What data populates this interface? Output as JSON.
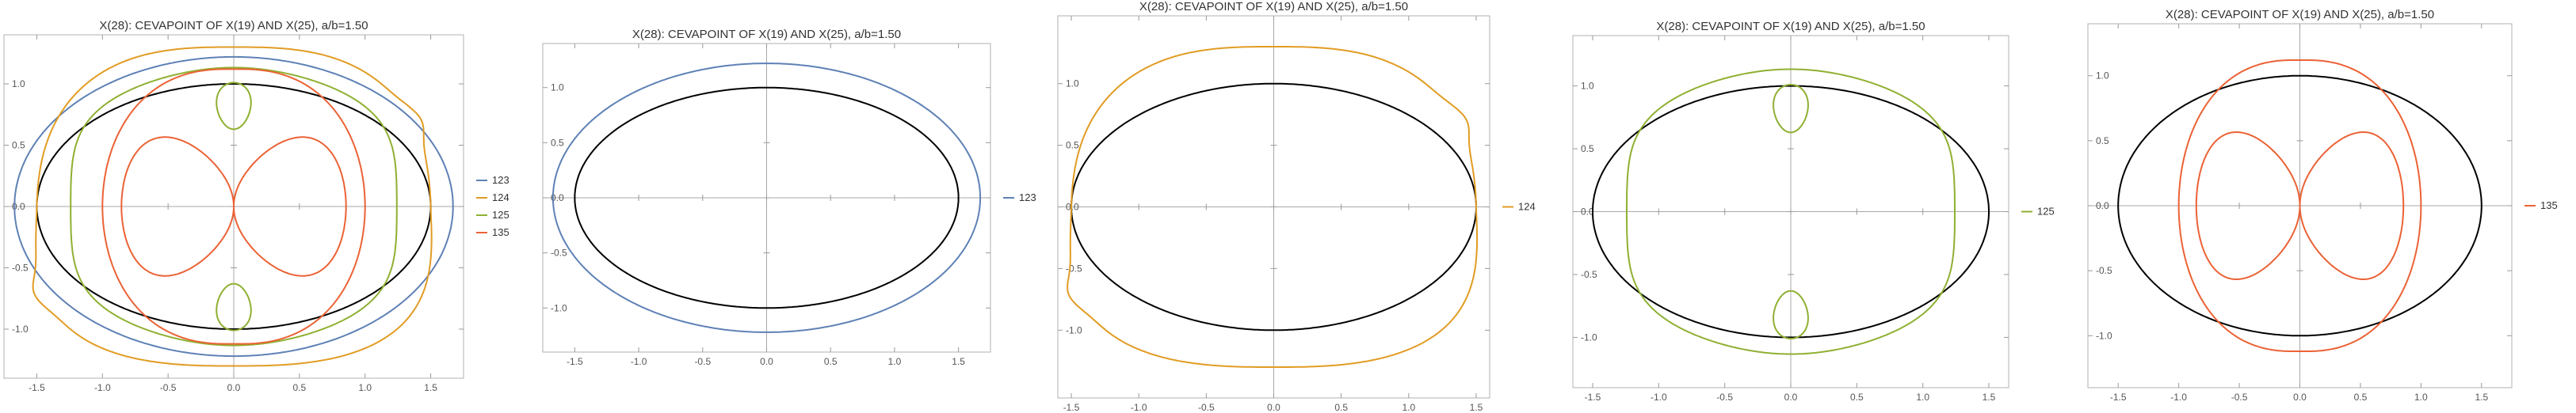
{
  "chart_data": [
    {
      "type": "line",
      "title": "X(28): CEVAPOINT OF X(19) AND X(25), a/b=1.50",
      "xlim": [
        -1.75,
        1.75
      ],
      "ylim": [
        -1.4,
        1.4
      ],
      "xticks": [
        "-1.5",
        "-1.0",
        "-0.5",
        "0.0",
        "0.5",
        "1.0",
        "1.5"
      ],
      "yticks": [
        "-1.0",
        "-0.5",
        "0.0",
        "0.5",
        "1.0"
      ],
      "legend_position": "right",
      "series": [
        {
          "name": "123",
          "color": "#5E81B5"
        },
        {
          "name": "124",
          "color": "#E19C24"
        },
        {
          "name": "125",
          "color": "#8FB032"
        },
        {
          "name": "135",
          "color": "#EB6235"
        }
      ]
    },
    {
      "type": "line",
      "title": "X(28): CEVAPOINT OF X(19) AND X(25), a/b=1.50",
      "xlim": [
        -1.75,
        1.75
      ],
      "ylim": [
        -1.4,
        1.4
      ],
      "xticks": [
        "-1.5",
        "-1.0",
        "-0.5",
        "0.0",
        "0.5",
        "1.0",
        "1.5"
      ],
      "yticks": [
        "-1.0",
        "-0.5",
        "0.0",
        "0.5",
        "1.0"
      ],
      "legend_position": "right",
      "series": [
        {
          "name": "123",
          "color": "#5E81B5"
        }
      ]
    },
    {
      "type": "line",
      "title": "X(28): CEVAPOINT OF X(19) AND X(25), a/b=1.50",
      "xlim": [
        -1.6,
        1.6
      ],
      "ylim": [
        -1.55,
        1.55
      ],
      "xticks": [
        "-1.5",
        "-1.0",
        "-0.5",
        "0.0",
        "0.5",
        "1.0",
        "1.5"
      ],
      "yticks": [
        "-1.0",
        "-0.5",
        "0.0",
        "0.5",
        "1.0"
      ],
      "legend_position": "right",
      "series": [
        {
          "name": "124",
          "color": "#E19C24"
        }
      ]
    },
    {
      "type": "line",
      "title": "X(28): CEVAPOINT OF X(19) AND X(25), a/b=1.50",
      "xlim": [
        -1.65,
        1.65
      ],
      "ylim": [
        -1.4,
        1.4
      ],
      "xticks": [
        "-1.5",
        "-1.0",
        "-0.5",
        "0.0",
        "0.5",
        "1.0",
        "1.5"
      ],
      "yticks": [
        "-1.0",
        "-0.5",
        "0.0",
        "0.5",
        "1.0"
      ],
      "legend_position": "right",
      "series": [
        {
          "name": "125",
          "color": "#8FB032"
        }
      ]
    },
    {
      "type": "line",
      "title": "X(28): CEVAPOINT OF X(19) AND X(25), a/b=1.50",
      "xlim": [
        -1.75,
        1.75
      ],
      "ylim": [
        -1.4,
        1.4
      ],
      "xticks": [
        "-1.5",
        "-1.0",
        "-0.5",
        "0.0",
        "0.5",
        "1.0",
        "1.5"
      ],
      "yticks": [
        "-1.0",
        "-0.5",
        "0.0",
        "0.5",
        "1.0"
      ],
      "legend_position": "right",
      "series": [
        {
          "name": "135",
          "color": "#EB6235"
        }
      ]
    }
  ]
}
